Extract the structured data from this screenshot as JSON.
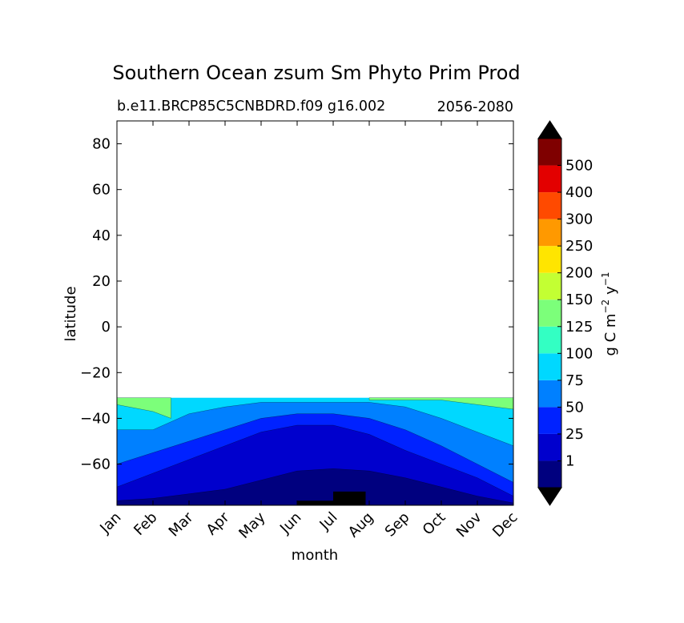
{
  "chart_data": {
    "type": "contour",
    "title": "Southern Ocean zsum Sm Phyto Prim Prod",
    "subtitle_left": "b.e11.BRCP85C5CNBDRD.f09 g16.002",
    "subtitle_right": "2056-2080",
    "xlabel": "month",
    "ylabel": "latitude",
    "x_categories": [
      "Jan",
      "Feb",
      "Mar",
      "Apr",
      "May",
      "Jun",
      "Jul",
      "Aug",
      "Sep",
      "Oct",
      "Nov",
      "Dec"
    ],
    "xlim": [
      0,
      11
    ],
    "ylim": [
      -78,
      90
    ],
    "yticks": [
      80,
      60,
      40,
      20,
      0,
      -20,
      -40,
      -60
    ],
    "ytick_labels": [
      "80",
      "60",
      "40",
      "20",
      "0",
      "−20",
      "−40",
      "−60"
    ],
    "grid": false,
    "colorbar": {
      "label": "g C m⁻² y⁻¹",
      "label_main": "g C m",
      "label_exp1": "−2",
      "label_mid": "y",
      "label_exp2": "−1",
      "levels": [
        "1",
        "25",
        "50",
        "75",
        "100",
        "125",
        "150",
        "200",
        "250",
        "300",
        "400",
        "500"
      ],
      "colors": [
        "#00007f",
        "#0000cd",
        "#0022ff",
        "#0080ff",
        "#00d8ff",
        "#33ffc3",
        "#7cff7a",
        "#c3ff33",
        "#ffe500",
        "#ff9900",
        "#ff4a00",
        "#e30000",
        "#7f0000"
      ],
      "extend": "both",
      "under_color": "#000000",
      "over_color": "#000000"
    },
    "contour_bands": [
      {
        "level_index": 4,
        "lower": [
          [
            0,
            -31
          ],
          [
            11,
            -31
          ]
        ],
        "upper": null
      },
      {
        "level_index": 3,
        "pts": [
          [
            0,
            -45
          ],
          [
            1,
            -45
          ],
          [
            2,
            -38
          ],
          [
            3,
            -35
          ],
          [
            4,
            -33
          ],
          [
            5,
            -33
          ],
          [
            6,
            -33
          ],
          [
            7,
            -33
          ],
          [
            8,
            -35
          ],
          [
            9,
            -40
          ],
          [
            10,
            -46
          ],
          [
            11,
            -52
          ]
        ]
      },
      {
        "level_index": 2,
        "pts": [
          [
            0,
            -60
          ],
          [
            1,
            -55
          ],
          [
            2,
            -50
          ],
          [
            3,
            -45
          ],
          [
            4,
            -40
          ],
          [
            5,
            -38
          ],
          [
            6,
            -38
          ],
          [
            7,
            -40
          ],
          [
            8,
            -45
          ],
          [
            9,
            -52
          ],
          [
            10,
            -60
          ],
          [
            11,
            -68
          ]
        ]
      },
      {
        "level_index": 1,
        "pts": [
          [
            0,
            -70
          ],
          [
            1,
            -64
          ],
          [
            2,
            -58
          ],
          [
            3,
            -52
          ],
          [
            4,
            -46
          ],
          [
            5,
            -43
          ],
          [
            6,
            -43
          ],
          [
            7,
            -47
          ],
          [
            8,
            -54
          ],
          [
            9,
            -60
          ],
          [
            10,
            -66
          ],
          [
            11,
            -74
          ]
        ]
      },
      {
        "level_index": 0,
        "pts": [
          [
            0,
            -76
          ],
          [
            1,
            -75
          ],
          [
            2,
            -73
          ],
          [
            3,
            -71
          ],
          [
            4,
            -67
          ],
          [
            5,
            -63
          ],
          [
            6,
            -62
          ],
          [
            7,
            -63
          ],
          [
            8,
            -66
          ],
          [
            9,
            -70
          ],
          [
            10,
            -74
          ],
          [
            11,
            -77
          ]
        ]
      }
    ],
    "upper_green_patches": [
      {
        "level_index": 6,
        "pts": [
          [
            7,
            -32
          ],
          [
            8,
            -32
          ],
          [
            9,
            -32
          ],
          [
            10,
            -34
          ],
          [
            11,
            -36
          ]
        ]
      },
      {
        "level_index": 6,
        "pts": [
          [
            0,
            -34
          ],
          [
            1,
            -37
          ],
          [
            1.5,
            -40
          ]
        ]
      }
    ],
    "under_patches": [
      {
        "label": "below range",
        "x": [
          5.0,
          6.0
        ],
        "y": [
          -78,
          -76
        ]
      },
      {
        "label": "below range",
        "x": [
          6.0,
          6.9
        ],
        "y": [
          -78,
          -72
        ]
      }
    ]
  }
}
